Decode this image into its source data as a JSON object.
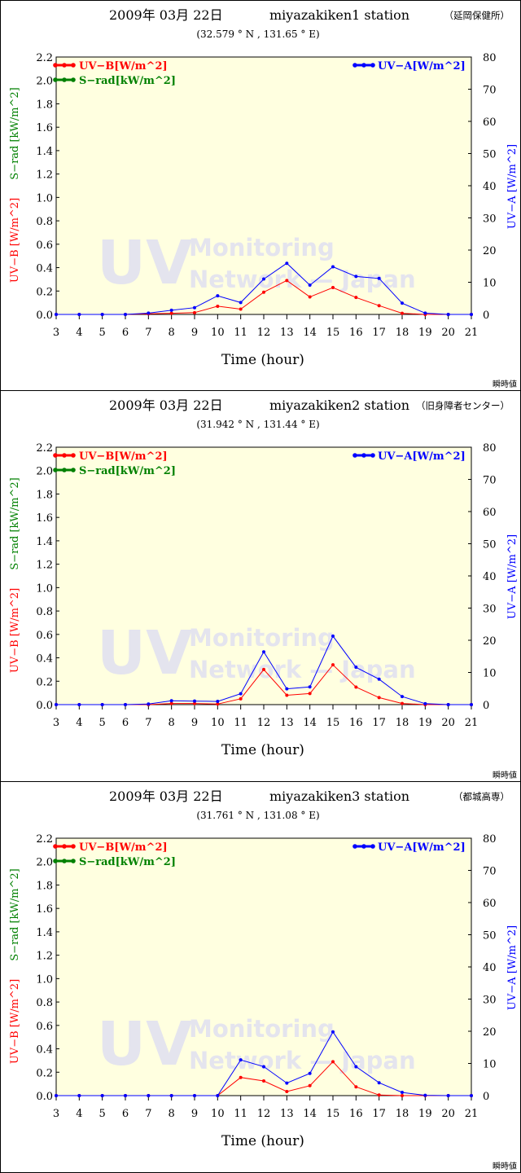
{
  "colors": {
    "uvb": "#ff0000",
    "srad": "#008000",
    "uva": "#0000ff",
    "plot_bg": "#ffffe0",
    "watermark": "#e4e4ee"
  },
  "watermark": {
    "big": "UV",
    "line1": "Monitoring",
    "line2": "Network — Japan"
  },
  "chart_data": [
    {
      "type": "line",
      "title": "2009年 03月 22日",
      "station": "miyazakiken1 station",
      "station_note": "（延岡保健所）",
      "coords": "(32.579 ° N , 131.65 ° E)",
      "corner_note": "瞬時値",
      "xlabel": "Time (hour)",
      "ylabel_left_uvb": "UV−B [W/m^2]",
      "ylabel_left_srad": "S−rad [kW/m^2]",
      "ylabel_right": "UV−A [W/m^2]",
      "x": [
        3,
        4,
        5,
        6,
        7,
        8,
        9,
        10,
        11,
        12,
        13,
        14,
        15,
        16,
        17,
        18,
        19,
        20,
        21
      ],
      "xlim": [
        3,
        21
      ],
      "ylim_left": [
        0,
        2.2
      ],
      "ylim_right": [
        0,
        80
      ],
      "left_ticks": [
        "0.0",
        "0.2",
        "0.4",
        "0.6",
        "0.8",
        "1.0",
        "1.2",
        "1.4",
        "1.6",
        "1.8",
        "2.0",
        "2.2"
      ],
      "right_ticks": [
        "0",
        "10",
        "20",
        "30",
        "40",
        "50",
        "60",
        "70",
        "80"
      ],
      "legend_left": [
        "UV−B[W/m^2]",
        "S−rad[kW/m^2]"
      ],
      "legend_right": "UV−A[W/m^2]",
      "series": [
        {
          "name": "UV−B[W/m^2]",
          "axis": "left",
          "values": [
            0,
            0,
            0,
            0,
            0.005,
            0.01,
            0.015,
            0.07,
            0.045,
            0.19,
            0.29,
            0.15,
            0.23,
            0.145,
            0.075,
            0.01,
            0,
            0,
            0
          ]
        },
        {
          "name": "UV−A[W/m^2]",
          "axis": "right",
          "values": [
            0,
            0,
            0,
            0,
            0.4,
            1.3,
            2.1,
            5.8,
            3.7,
            11,
            15.9,
            9.1,
            14.8,
            11.8,
            11.2,
            3.5,
            0.4,
            0,
            0
          ]
        }
      ]
    },
    {
      "type": "line",
      "title": "2009年 03月 22日",
      "station": "miyazakiken2 station",
      "station_note": "（旧身障者センター）",
      "coords": "(31.942 ° N , 131.44 ° E)",
      "corner_note": "瞬時値",
      "xlabel": "Time (hour)",
      "ylabel_left_uvb": "UV−B [W/m^2]",
      "ylabel_left_srad": "S−rad [kW/m^2]",
      "ylabel_right": "UV−A [W/m^2]",
      "x": [
        3,
        4,
        5,
        6,
        7,
        8,
        9,
        10,
        11,
        12,
        13,
        14,
        15,
        16,
        17,
        18,
        19,
        20,
        21
      ],
      "xlim": [
        3,
        21
      ],
      "ylim_left": [
        0,
        2.2
      ],
      "ylim_right": [
        0,
        80
      ],
      "left_ticks": [
        "0.0",
        "0.2",
        "0.4",
        "0.6",
        "0.8",
        "1.0",
        "1.2",
        "1.4",
        "1.6",
        "1.8",
        "2.0",
        "2.2"
      ],
      "right_ticks": [
        "0",
        "10",
        "20",
        "30",
        "40",
        "50",
        "60",
        "70",
        "80"
      ],
      "legend_left": [
        "UV−B[W/m^2]",
        "S−rad[kW/m^2]"
      ],
      "legend_right": "UV−A[W/m^2]",
      "series": [
        {
          "name": "UV−B[W/m^2]",
          "axis": "left",
          "values": [
            0,
            0,
            0,
            0,
            0,
            0.01,
            0.01,
            0.005,
            0.05,
            0.3,
            0.08,
            0.095,
            0.34,
            0.15,
            0.06,
            0.01,
            0,
            0,
            0
          ]
        },
        {
          "name": "UV−A[W/m^2]",
          "axis": "right",
          "values": [
            0,
            0,
            0,
            0,
            0.2,
            1.2,
            1.1,
            1.0,
            3.4,
            16.4,
            4.9,
            5.5,
            21.3,
            11.6,
            7.9,
            2.5,
            0.3,
            0,
            0
          ]
        }
      ]
    },
    {
      "type": "line",
      "title": "2009年 03月 22日",
      "station": "miyazakiken3 station",
      "station_note": "（都城高専）",
      "coords": "(31.761 ° N , 131.08 ° E)",
      "corner_note": "瞬時値",
      "xlabel": "Time (hour)",
      "ylabel_left_uvb": "UV−B [W/m^2]",
      "ylabel_left_srad": "S−rad [kW/m^2]",
      "ylabel_right": "UV−A [W/m^2]",
      "x": [
        3,
        4,
        5,
        6,
        7,
        8,
        9,
        10,
        11,
        12,
        13,
        14,
        15,
        16,
        17,
        18,
        19,
        20,
        21
      ],
      "xlim": [
        3,
        21
      ],
      "ylim_left": [
        0,
        2.2
      ],
      "ylim_right": [
        0,
        80
      ],
      "left_ticks": [
        "0.0",
        "0.2",
        "0.4",
        "0.6",
        "0.8",
        "1.0",
        "1.2",
        "1.4",
        "1.6",
        "1.8",
        "2.0",
        "2.2"
      ],
      "right_ticks": [
        "0",
        "10",
        "20",
        "30",
        "40",
        "50",
        "60",
        "70",
        "80"
      ],
      "legend_left": [
        "UV−B[W/m^2]",
        "S−rad[kW/m^2]"
      ],
      "legend_right": "UV−A[W/m^2]",
      "series": [
        {
          "name": "UV−B[W/m^2]",
          "axis": "left",
          "values": [
            0,
            0,
            0,
            0,
            0,
            0,
            0,
            0,
            0.155,
            0.125,
            0.035,
            0.085,
            0.29,
            0.075,
            0.005,
            0,
            0,
            0,
            0
          ]
        },
        {
          "name": "UV−A[W/m^2]",
          "axis": "right",
          "values": [
            0,
            0,
            0,
            0,
            0,
            0,
            0,
            0,
            11.1,
            9.0,
            3.9,
            6.9,
            19.8,
            9.0,
            4.0,
            1.0,
            0.1,
            0,
            0
          ]
        }
      ]
    }
  ]
}
